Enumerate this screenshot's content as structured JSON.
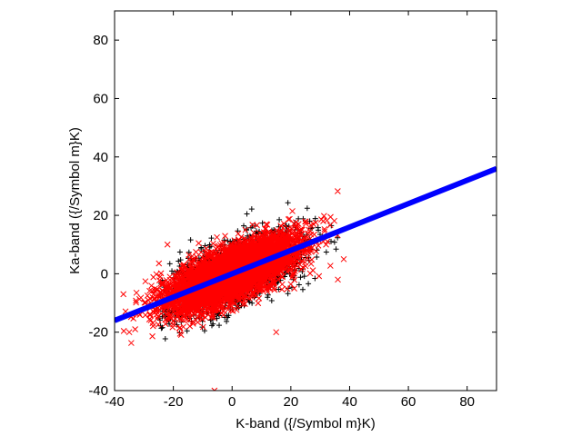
{
  "chart_data": {
    "type": "scatter",
    "title": "",
    "xlabel": "K-band ({/Symbol m}K)",
    "ylabel": "Ka-band ({/Symbol m}K)",
    "xlim": [
      -40,
      90
    ],
    "ylim": [
      -40,
      90
    ],
    "x_ticks": [
      -40,
      -20,
      0,
      20,
      40,
      60,
      80
    ],
    "y_ticks": [
      -40,
      -20,
      0,
      20,
      40,
      60,
      80
    ],
    "grid": false,
    "legend": "none",
    "series": [
      {
        "marker": "plus",
        "color": "#000000",
        "distribution": {
          "x_mean": 0,
          "x_sd": 12,
          "y_slope": 0.4,
          "y_intercept": 0,
          "y_resid_sd": 5.5,
          "x_range": [
            -25,
            42
          ],
          "count": 1800
        }
      },
      {
        "marker": "cross",
        "color": "#ff0000",
        "distribution": {
          "x_mean": 0,
          "x_sd": 11,
          "y_slope": 0.4,
          "y_intercept": 0,
          "y_resid_sd": 4.5,
          "x_range": [
            -40,
            40
          ],
          "count": 5000
        },
        "points": [
          [
            -6,
            -40
          ],
          [
            -35,
            -20
          ],
          [
            -33,
            -19
          ],
          [
            -37,
            -7
          ],
          [
            38,
            5
          ],
          [
            36,
            -2
          ],
          [
            -22,
            10
          ],
          [
            15,
            -20
          ]
        ]
      },
      {
        "type": "line",
        "color": "#0000ff",
        "x": [
          -40,
          90
        ],
        "y": [
          -16,
          36
        ]
      }
    ]
  }
}
